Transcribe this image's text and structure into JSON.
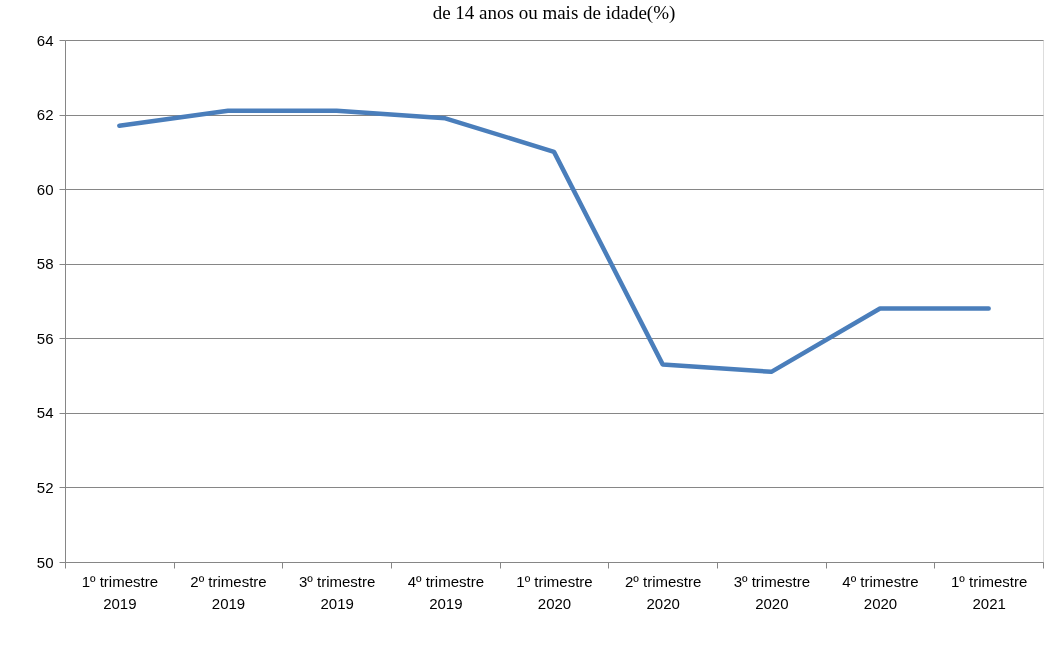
{
  "chart_data": {
    "type": "line",
    "title": "de 14 anos ou mais de idade(%)",
    "categories": [
      "1º trimestre 2019",
      "2º trimestre 2019",
      "3º trimestre 2019",
      "4º trimestre 2019",
      "1º trimestre 2020",
      "2º trimestre 2020",
      "3º trimestre 2020",
      "4º trimestre 2020",
      "1º trimestre 2021"
    ],
    "series": [
      {
        "color": "#4a7ebb",
        "values": [
          61.7,
          62.1,
          62.1,
          61.9,
          61.0,
          55.3,
          55.1,
          56.8,
          56.8
        ]
      }
    ],
    "ylim": [
      50,
      64
    ],
    "yticks": [
      50,
      52,
      54,
      56,
      58,
      60,
      62,
      64
    ],
    "grid": "y",
    "legend": false,
    "marker": "none",
    "line_style": "solid"
  }
}
